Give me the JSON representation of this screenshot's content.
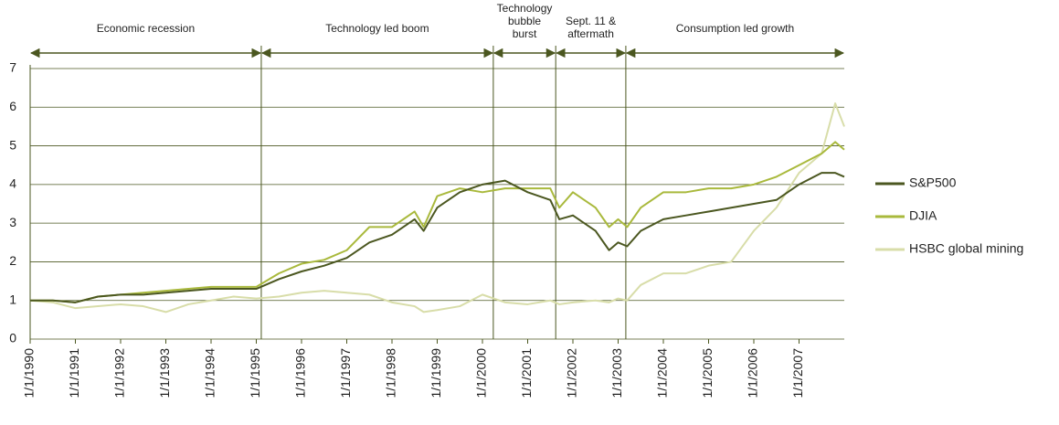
{
  "chart_data": {
    "type": "line",
    "x": [
      1990,
      1990.5,
      1991,
      1991.5,
      1992,
      1992.5,
      1993,
      1993.5,
      1994,
      1994.5,
      1995,
      1995.5,
      1996,
      1996.5,
      1997,
      1997.5,
      1998,
      1998.5,
      1998.7,
      1999,
      1999.5,
      2000,
      2000.5,
      2001,
      2001.5,
      2001.7,
      2002,
      2002.5,
      2002.8,
      2003,
      2003.2,
      2003.5,
      2004,
      2004.5,
      2005,
      2005.5,
      2006,
      2006.5,
      2007,
      2007.5,
      2007.8,
      2008
    ],
    "series": [
      {
        "name": "S&P500",
        "color": "#4b5720",
        "values": [
          1.0,
          1.0,
          0.95,
          1.1,
          1.15,
          1.15,
          1.2,
          1.25,
          1.3,
          1.3,
          1.3,
          1.55,
          1.75,
          1.9,
          2.1,
          2.5,
          2.7,
          3.1,
          2.8,
          3.4,
          3.8,
          4.0,
          4.1,
          3.8,
          3.6,
          3.1,
          3.2,
          2.8,
          2.3,
          2.5,
          2.4,
          2.8,
          3.1,
          3.2,
          3.3,
          3.4,
          3.5,
          3.6,
          4.0,
          4.3,
          4.3,
          4.2
        ]
      },
      {
        "name": "DJIA",
        "color": "#a9b93c",
        "values": [
          1.0,
          1.0,
          0.95,
          1.1,
          1.15,
          1.2,
          1.25,
          1.3,
          1.35,
          1.35,
          1.35,
          1.7,
          1.95,
          2.05,
          2.3,
          2.9,
          2.9,
          3.3,
          2.9,
          3.7,
          3.9,
          3.8,
          3.9,
          3.9,
          3.9,
          3.4,
          3.8,
          3.4,
          2.9,
          3.1,
          2.9,
          3.4,
          3.8,
          3.8,
          3.9,
          3.9,
          4.0,
          4.2,
          4.5,
          4.8,
          5.1,
          4.9
        ]
      },
      {
        "name": "HSBC global mining",
        "color": "#d8dda9",
        "values": [
          1.0,
          0.95,
          0.8,
          0.85,
          0.9,
          0.85,
          0.7,
          0.9,
          1.0,
          1.1,
          1.05,
          1.1,
          1.2,
          1.25,
          1.2,
          1.15,
          0.95,
          0.85,
          0.7,
          0.75,
          0.85,
          1.15,
          0.95,
          0.9,
          1.0,
          0.9,
          0.95,
          1.0,
          0.95,
          1.05,
          1.0,
          1.4,
          1.7,
          1.7,
          1.9,
          2.0,
          2.8,
          3.4,
          4.3,
          4.8,
          6.1,
          5.5
        ]
      }
    ],
    "xlim": [
      1990,
      2008
    ],
    "xticks": [
      {
        "value": 1990,
        "label": "1/1/1990"
      },
      {
        "value": 1991,
        "label": "1/1/1991"
      },
      {
        "value": 1992,
        "label": "1/1/1992"
      },
      {
        "value": 1993,
        "label": "1/1/1993"
      },
      {
        "value": 1994,
        "label": "1/1/1994"
      },
      {
        "value": 1995,
        "label": "1/1/1995"
      },
      {
        "value": 1996,
        "label": "1/1/1996"
      },
      {
        "value": 1997,
        "label": "1/1/1997"
      },
      {
        "value": 1998,
        "label": "1/1/1998"
      },
      {
        "value": 1999,
        "label": "1/1/1999"
      },
      {
        "value": 2000,
        "label": "1/1/2000"
      },
      {
        "value": 2001,
        "label": "1/1/2001"
      },
      {
        "value": 2002,
        "label": "1/1/2002"
      },
      {
        "value": 2003,
        "label": "1/1/2003"
      },
      {
        "value": 2004,
        "label": "1/1/2004"
      },
      {
        "value": 2005,
        "label": "1/1/2005"
      },
      {
        "value": 2006,
        "label": "1/1/2006"
      },
      {
        "value": 2007,
        "label": "1/1/2007"
      }
    ],
    "ylim": [
      0,
      7
    ],
    "yticks": [
      0,
      1,
      2,
      3,
      4,
      5,
      6,
      7
    ],
    "grid": true,
    "legend": "right",
    "periods": [
      {
        "label": [
          "Economic recession"
        ],
        "start": 1990,
        "end": 1995.11
      },
      {
        "label": [
          "Technology led boom"
        ],
        "start": 1995.11,
        "end": 2000.24
      },
      {
        "label": [
          "Technology",
          "bubble",
          "burst"
        ],
        "start": 2000.24,
        "end": 2001.62
      },
      {
        "label": [
          "Sept. 11 &",
          "aftermath"
        ],
        "start": 2001.62,
        "end": 2003.17
      },
      {
        "label": [
          "Consumption led growth"
        ],
        "start": 2003.17,
        "end": 2008
      }
    ]
  }
}
